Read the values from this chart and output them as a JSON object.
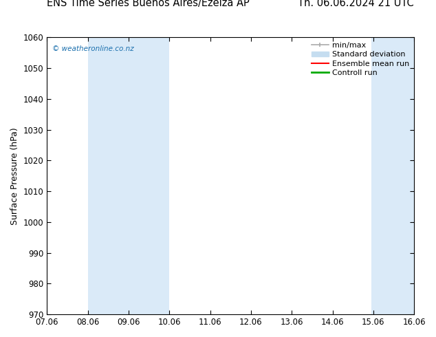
{
  "title_left": "ENS Time Series Buenos Aires/Ezeiza AP",
  "title_right": "Th. 06.06.2024 21 UTC",
  "ylabel": "Surface Pressure (hPa)",
  "ylim": [
    970,
    1060
  ],
  "yticks": [
    970,
    980,
    990,
    1000,
    1010,
    1020,
    1030,
    1040,
    1050,
    1060
  ],
  "xtick_labels": [
    "07.06",
    "08.06",
    "09.06",
    "10.06",
    "11.06",
    "12.06",
    "13.06",
    "14.06",
    "15.06",
    "16.06"
  ],
  "xtick_positions": [
    0,
    1,
    2,
    3,
    4,
    5,
    6,
    7,
    8,
    9
  ],
  "xlim": [
    0,
    9
  ],
  "shaded_bands": [
    {
      "x_start": 1.0,
      "x_end": 3.0
    },
    {
      "x_start": 7.95,
      "x_end": 9.0
    }
  ],
  "band_color": "#daeaf8",
  "watermark_text": "© weatheronline.co.nz",
  "watermark_color": "#1a6fad",
  "bg_color": "#ffffff",
  "plot_bg_color": "#ffffff",
  "title_fontsize": 10.5,
  "axis_label_fontsize": 9,
  "tick_fontsize": 8.5,
  "legend_fontsize": 8,
  "minmax_color": "#aaaaaa",
  "stddev_color": "#c5ddf0",
  "ensemble_color": "#ff0000",
  "control_color": "#00aa00"
}
